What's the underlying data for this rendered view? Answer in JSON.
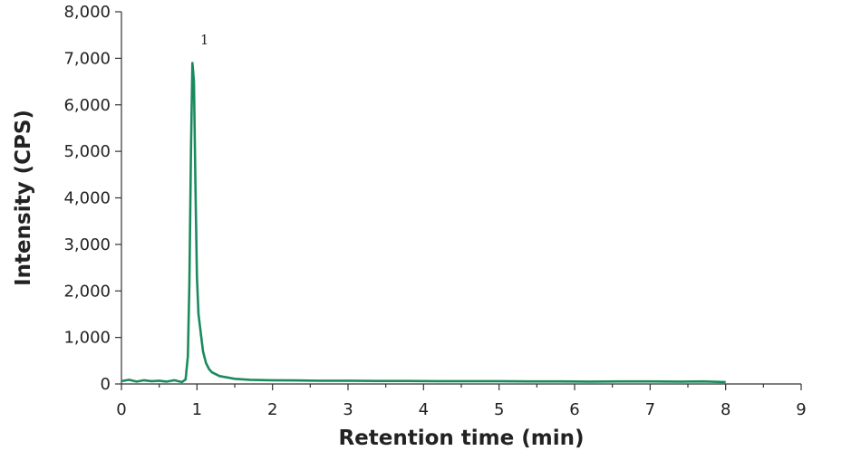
{
  "chart_data": {
    "type": "line",
    "title": "",
    "xlabel": "Retention time (min)",
    "ylabel": "Intensity (CPS)",
    "xlim": [
      0,
      9
    ],
    "ylim": [
      0,
      8000
    ],
    "x_ticks": [
      0,
      1,
      2,
      3,
      4,
      5,
      6,
      7,
      8,
      9
    ],
    "x_tick_labels": [
      "0",
      "1",
      "2",
      "3",
      "4",
      "5",
      "6",
      "7",
      "8",
      "9"
    ],
    "y_ticks": [
      0,
      1000,
      2000,
      3000,
      4000,
      5000,
      6000,
      7000,
      8000
    ],
    "y_tick_labels": [
      "0",
      "1,000",
      "2,000",
      "3,000",
      "4,000",
      "5,000",
      "6,000",
      "7,000",
      "8,000"
    ],
    "grid": false,
    "legend": "none",
    "line_color": "#1a8a5e",
    "series": [
      {
        "x": [
          0.0,
          0.1,
          0.2,
          0.3,
          0.4,
          0.5,
          0.6,
          0.7,
          0.8,
          0.85,
          0.88,
          0.9,
          0.92,
          0.94,
          0.96,
          0.98,
          1.0,
          1.02,
          1.05,
          1.08,
          1.12,
          1.16,
          1.2,
          1.3,
          1.4,
          1.5,
          1.7,
          2.0,
          2.3,
          2.6,
          3.0,
          3.4,
          3.8,
          4.2,
          4.6,
          5.0,
          5.4,
          5.8,
          6.2,
          6.6,
          7.0,
          7.4,
          7.7,
          8.0
        ],
        "y": [
          60,
          90,
          50,
          80,
          60,
          70,
          50,
          80,
          40,
          100,
          600,
          2200,
          5000,
          6900,
          6500,
          4200,
          2300,
          1500,
          1100,
          700,
          450,
          320,
          250,
          170,
          140,
          110,
          90,
          80,
          75,
          70,
          70,
          65,
          65,
          60,
          60,
          60,
          55,
          55,
          50,
          55,
          55,
          50,
          55,
          40
        ]
      }
    ],
    "annotations": [
      {
        "text": "1",
        "x": 1.1,
        "y": 7300
      }
    ]
  }
}
